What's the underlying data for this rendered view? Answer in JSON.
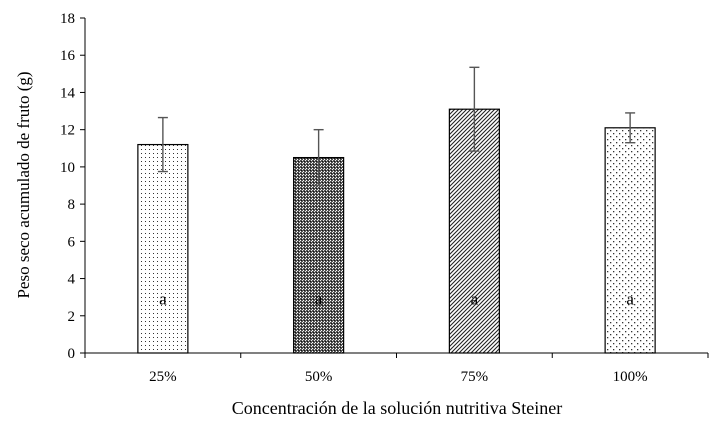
{
  "chart_data": {
    "type": "bar",
    "xlabel": "Concentración de la solución nutritiva Steiner",
    "ylabel": "Peso seco acumulado de fruto (g)",
    "ylim": [
      0,
      18
    ],
    "yticks": [
      0,
      2,
      4,
      6,
      8,
      10,
      12,
      14,
      16,
      18
    ],
    "categories": [
      "25%",
      "50%",
      "75%",
      "100%"
    ],
    "values": [
      11.2,
      10.5,
      13.1,
      12.1
    ],
    "errors": [
      1.45,
      1.5,
      2.25,
      0.8
    ],
    "letters": [
      "a",
      "a",
      "a",
      "a"
    ],
    "patterns": [
      "fine-dots",
      "dense-crosshatch",
      "diagonal-lines",
      "sparse-dots"
    ],
    "grid": false,
    "legend": "none"
  }
}
